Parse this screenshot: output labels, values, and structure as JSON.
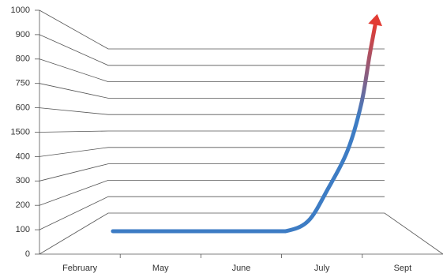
{
  "chart_data": {
    "type": "line",
    "categories": [
      "February",
      "May",
      "June",
      "July",
      "Sept"
    ],
    "y_categories": [
      "0",
      "100",
      "200",
      "300",
      "400",
      "1500",
      "600",
      "750",
      "800",
      "900",
      "1000"
    ],
    "xlim": [
      0,
      5
    ],
    "ylim": [
      0,
      10
    ],
    "series": [
      {
        "x": [
          0.91,
          3.05,
          3.33,
          3.57,
          3.82,
          3.99,
          4.09,
          4.16
        ],
        "values": [
          0.94,
          0.94,
          1.36,
          2.65,
          4.27,
          6.2,
          8.15,
          9.4
        ],
        "colors": [
          "#3d7cc4",
          "#e23b33"
        ]
      }
    ]
  }
}
